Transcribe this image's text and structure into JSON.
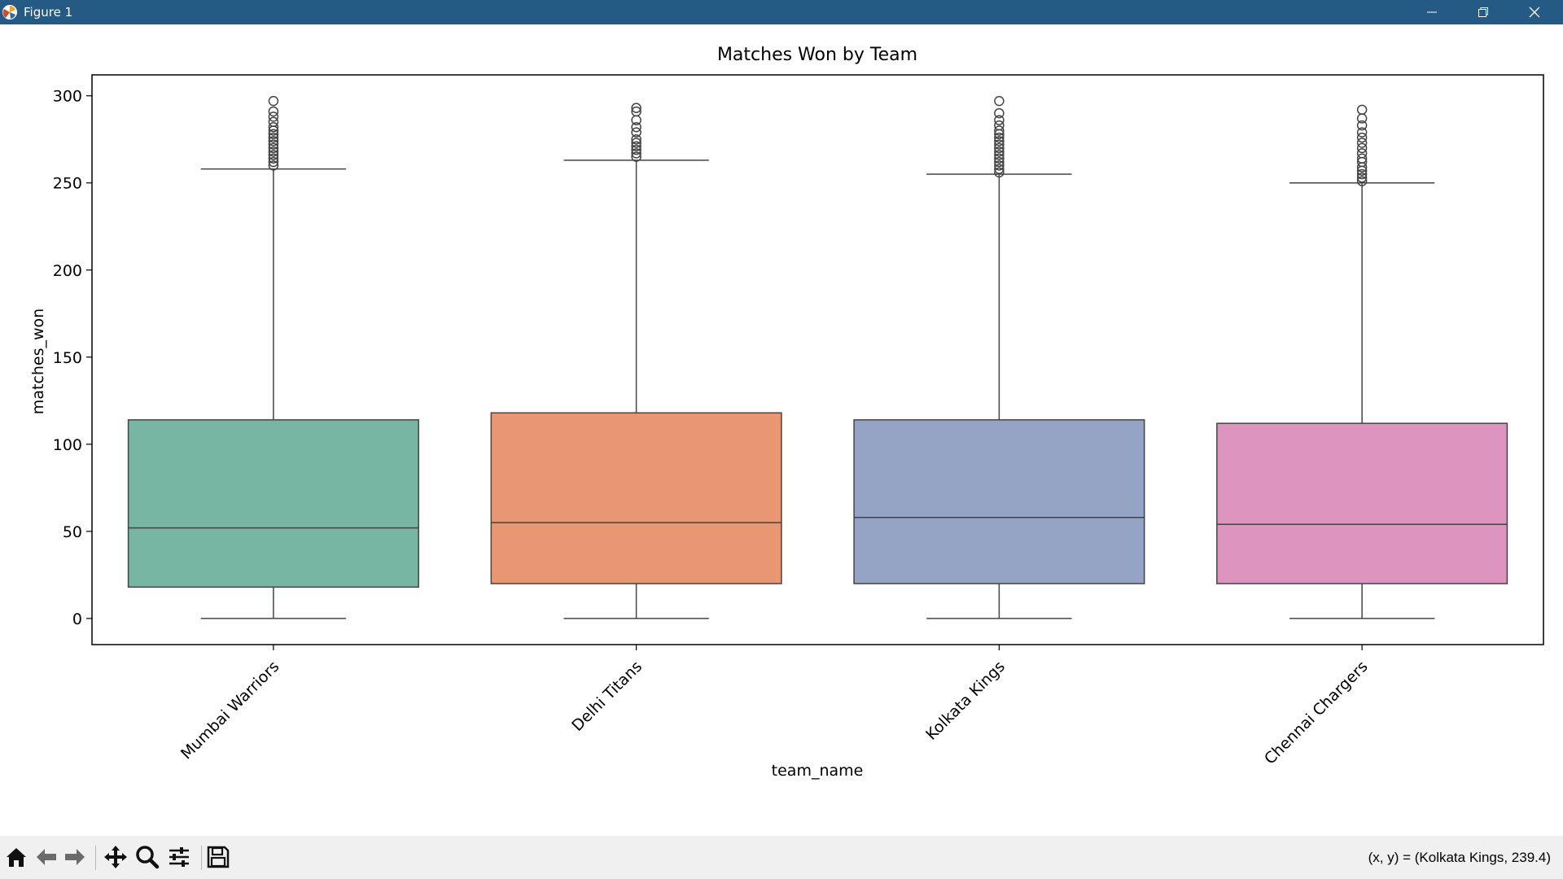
{
  "window": {
    "title": "Figure 1",
    "colors": {
      "titlebar": "#255a85",
      "toolbar": "#f0f0f0"
    }
  },
  "toolbar": {
    "buttons": [
      "home-icon",
      "back-arrow-icon",
      "forward-arrow-icon",
      "pan-move-icon",
      "zoom-magnifier-icon",
      "configure-subplots-icon",
      "save-floppy-icon"
    ],
    "coords_text": "(x, y) = (Kolkata Kings, 239.4)"
  },
  "chart_data": {
    "type": "box",
    "title": "Matches Won by Team",
    "xlabel": "team_name",
    "ylabel": "matches_won",
    "ylim": [
      -15,
      312
    ],
    "yticks": [
      0,
      50,
      100,
      150,
      200,
      250,
      300
    ],
    "grid": false,
    "categories": [
      "Mumbai Warriors",
      "Delhi Titans",
      "Kolkata Kings",
      "Chennai Chargers"
    ],
    "colors": [
      "#76b6a2",
      "#e99672",
      "#95a4c4",
      "#dd94bf"
    ],
    "boxes": [
      {
        "whislo": 0,
        "q1": 18,
        "median": 52,
        "q3": 114,
        "whishi": 258,
        "fliers": [
          260,
          262,
          264,
          266,
          268,
          270,
          272,
          274,
          276,
          278,
          280,
          282,
          285,
          288,
          291,
          297
        ]
      },
      {
        "whislo": 0,
        "q1": 20,
        "median": 55,
        "q3": 118,
        "whishi": 263,
        "fliers": [
          265,
          267,
          269,
          271,
          273,
          275,
          279,
          282,
          286,
          291,
          293
        ]
      },
      {
        "whislo": 0,
        "q1": 20,
        "median": 58,
        "q3": 114,
        "whishi": 255,
        "fliers": [
          256,
          258,
          260,
          262,
          264,
          266,
          268,
          270,
          272,
          274,
          276,
          278,
          280,
          283,
          286,
          290,
          297
        ]
      },
      {
        "whislo": 0,
        "q1": 20,
        "median": 54,
        "q3": 112,
        "whishi": 250,
        "fliers": [
          251,
          253,
          255,
          257,
          259,
          262,
          264,
          267,
          270,
          273,
          276,
          279,
          283,
          287,
          292
        ]
      }
    ]
  }
}
